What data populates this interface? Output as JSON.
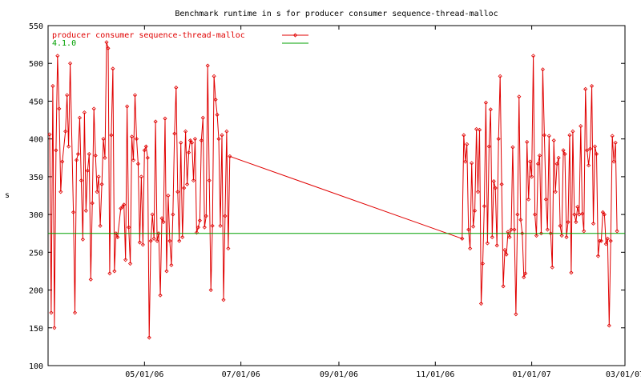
{
  "chart_data": {
    "type": "line",
    "title": "Benchmark runtime in s for producer consumer sequence-thread-malloc",
    "xlabel": "",
    "ylabel": "s",
    "x_axis_type": "date",
    "xlim": [
      "2006-03-01",
      "2007-03-01"
    ],
    "ylim": [
      100,
      550
    ],
    "y_ticks": [
      100,
      150,
      200,
      250,
      300,
      350,
      400,
      450,
      500,
      550
    ],
    "x_ticks": [
      {
        "date": "2006-05-01",
        "label": "05/01/06"
      },
      {
        "date": "2006-07-01",
        "label": "07/01/06"
      },
      {
        "date": "2006-09-01",
        "label": "09/01/06"
      },
      {
        "date": "2006-11-01",
        "label": "11/01/06"
      },
      {
        "date": "2007-01-01",
        "label": "01/01/07"
      },
      {
        "date": "2007-03-01",
        "label": "03/01/07"
      }
    ],
    "grid": false,
    "legend_position": "top-left",
    "series": [
      {
        "name": "producer consumer sequence-thread-malloc",
        "color": "#e00000",
        "marker": "diamond",
        "points": [
          [
            "2006-03-02",
            406
          ],
          [
            "2006-03-03",
            170
          ],
          [
            "2006-03-04",
            470
          ],
          [
            "2006-03-05",
            150
          ],
          [
            "2006-03-06",
            385
          ],
          [
            "2006-03-07",
            510
          ],
          [
            "2006-03-08",
            440
          ],
          [
            "2006-03-09",
            330
          ],
          [
            "2006-03-10",
            370
          ],
          [
            "2006-03-12",
            410
          ],
          [
            "2006-03-13",
            458
          ],
          [
            "2006-03-14",
            390
          ],
          [
            "2006-03-15",
            500
          ],
          [
            "2006-03-17",
            303
          ],
          [
            "2006-03-18",
            170
          ],
          [
            "2006-03-19",
            372
          ],
          [
            "2006-03-20",
            380
          ],
          [
            "2006-03-21",
            428
          ],
          [
            "2006-03-22",
            345
          ],
          [
            "2006-03-23",
            267
          ],
          [
            "2006-03-24",
            435
          ],
          [
            "2006-03-25",
            305
          ],
          [
            "2006-03-26",
            358
          ],
          [
            "2006-03-27",
            380
          ],
          [
            "2006-03-28",
            214
          ],
          [
            "2006-03-29",
            315
          ],
          [
            "2006-03-30",
            440
          ],
          [
            "2006-03-31",
            378
          ],
          [
            "2006-04-01",
            330
          ],
          [
            "2006-04-02",
            350
          ],
          [
            "2006-04-03",
            285
          ],
          [
            "2006-04-04",
            340
          ],
          [
            "2006-04-05",
            400
          ],
          [
            "2006-04-06",
            375
          ],
          [
            "2006-04-07",
            528
          ],
          [
            "2006-04-08",
            520
          ],
          [
            "2006-04-09",
            222
          ],
          [
            "2006-04-10",
            405
          ],
          [
            "2006-04-11",
            493
          ],
          [
            "2006-04-12",
            225
          ],
          [
            "2006-04-13",
            275
          ],
          [
            "2006-04-14",
            270
          ],
          [
            "2006-04-16",
            308
          ],
          [
            "2006-04-17",
            310
          ],
          [
            "2006-04-18",
            313
          ],
          [
            "2006-04-19",
            240
          ],
          [
            "2006-04-20",
            443
          ],
          [
            "2006-04-21",
            283
          ],
          [
            "2006-04-22",
            235
          ],
          [
            "2006-04-23",
            403
          ],
          [
            "2006-04-24",
            372
          ],
          [
            "2006-04-25",
            458
          ],
          [
            "2006-04-26",
            400
          ],
          [
            "2006-04-27",
            367
          ],
          [
            "2006-04-28",
            263
          ],
          [
            "2006-04-29",
            350
          ],
          [
            "2006-04-30",
            260
          ],
          [
            "2006-05-01",
            385
          ],
          [
            "2006-05-02",
            390
          ],
          [
            "2006-05-03",
            375
          ],
          [
            "2006-05-04",
            137
          ],
          [
            "2006-05-05",
            265
          ],
          [
            "2006-05-06",
            300
          ],
          [
            "2006-05-07",
            268
          ],
          [
            "2006-05-08",
            423
          ],
          [
            "2006-05-09",
            265
          ],
          [
            "2006-05-10",
            275
          ],
          [
            "2006-05-11",
            193
          ],
          [
            "2006-05-12",
            295
          ],
          [
            "2006-05-13",
            290
          ],
          [
            "2006-05-14",
            427
          ],
          [
            "2006-05-15",
            225
          ],
          [
            "2006-05-16",
            325
          ],
          [
            "2006-05-17",
            265
          ],
          [
            "2006-05-18",
            233
          ],
          [
            "2006-05-19",
            300
          ],
          [
            "2006-05-20",
            407
          ],
          [
            "2006-05-21",
            468
          ],
          [
            "2006-05-22",
            330
          ],
          [
            "2006-05-23",
            265
          ],
          [
            "2006-05-24",
            395
          ],
          [
            "2006-05-25",
            270
          ],
          [
            "2006-05-26",
            335
          ],
          [
            "2006-05-27",
            410
          ],
          [
            "2006-05-28",
            340
          ],
          [
            "2006-05-29",
            382
          ],
          [
            "2006-05-30",
            398
          ],
          [
            "2006-05-31",
            395
          ],
          [
            "2006-06-01",
            345
          ],
          [
            "2006-06-02",
            400
          ],
          [
            "2006-06-03",
            276
          ],
          [
            "2006-06-04",
            283
          ],
          [
            "2006-06-05",
            292
          ],
          [
            "2006-06-06",
            398
          ],
          [
            "2006-06-07",
            428
          ],
          [
            "2006-06-08",
            283
          ],
          [
            "2006-06-09",
            298
          ],
          [
            "2006-06-10",
            497
          ],
          [
            "2006-06-11",
            345
          ],
          [
            "2006-06-12",
            200
          ],
          [
            "2006-06-13",
            285
          ],
          [
            "2006-06-14",
            483
          ],
          [
            "2006-06-15",
            452
          ],
          [
            "2006-06-16",
            432
          ],
          [
            "2006-06-17",
            400
          ],
          [
            "2006-06-18",
            285
          ],
          [
            "2006-06-19",
            405
          ],
          [
            "2006-06-20",
            187
          ],
          [
            "2006-06-21",
            298
          ],
          [
            "2006-06-22",
            410
          ],
          [
            "2006-06-23",
            255
          ],
          [
            "2006-06-24",
            377
          ],
          [
            "2006-11-18",
            268
          ],
          [
            "2006-11-19",
            405
          ],
          [
            "2006-11-20",
            370
          ],
          [
            "2006-11-21",
            393
          ],
          [
            "2006-11-22",
            280
          ],
          [
            "2006-11-23",
            255
          ],
          [
            "2006-11-24",
            368
          ],
          [
            "2006-11-25",
            284
          ],
          [
            "2006-11-26",
            305
          ],
          [
            "2006-11-27",
            413
          ],
          [
            "2006-11-28",
            330
          ],
          [
            "2006-11-29",
            412
          ],
          [
            "2006-11-30",
            182
          ],
          [
            "2006-12-01",
            235
          ],
          [
            "2006-12-02",
            311
          ],
          [
            "2006-12-03",
            448
          ],
          [
            "2006-12-04",
            262
          ],
          [
            "2006-12-05",
            390
          ],
          [
            "2006-12-06",
            439
          ],
          [
            "2006-12-07",
            270
          ],
          [
            "2006-12-08",
            344
          ],
          [
            "2006-12-09",
            335
          ],
          [
            "2006-12-10",
            259
          ],
          [
            "2006-12-11",
            400
          ],
          [
            "2006-12-12",
            483
          ],
          [
            "2006-12-13",
            340
          ],
          [
            "2006-12-14",
            205
          ],
          [
            "2006-12-15",
            253
          ],
          [
            "2006-12-16",
            247
          ],
          [
            "2006-12-17",
            277
          ],
          [
            "2006-12-18",
            270
          ],
          [
            "2006-12-19",
            280
          ],
          [
            "2006-12-20",
            389
          ],
          [
            "2006-12-21",
            280
          ],
          [
            "2006-12-22",
            168
          ],
          [
            "2006-12-23",
            300
          ],
          [
            "2006-12-24",
            456
          ],
          [
            "2006-12-25",
            293
          ],
          [
            "2006-12-26",
            275
          ],
          [
            "2006-12-27",
            217
          ],
          [
            "2006-12-28",
            222
          ],
          [
            "2006-12-29",
            396
          ],
          [
            "2006-12-30",
            320
          ],
          [
            "2006-12-31",
            370
          ],
          [
            "2007-01-01",
            350
          ],
          [
            "2007-01-02",
            510
          ],
          [
            "2007-01-03",
            300
          ],
          [
            "2007-01-04",
            272
          ],
          [
            "2007-01-05",
            367
          ],
          [
            "2007-01-06",
            378
          ],
          [
            "2007-01-07",
            275
          ],
          [
            "2007-01-08",
            492
          ],
          [
            "2007-01-09",
            405
          ],
          [
            "2007-01-10",
            320
          ],
          [
            "2007-01-11",
            280
          ],
          [
            "2007-01-12",
            404
          ],
          [
            "2007-01-13",
            275
          ],
          [
            "2007-01-14",
            230
          ],
          [
            "2007-01-15",
            398
          ],
          [
            "2007-01-16",
            330
          ],
          [
            "2007-01-17",
            367
          ],
          [
            "2007-01-18",
            375
          ],
          [
            "2007-01-19",
            285
          ],
          [
            "2007-01-20",
            272
          ],
          [
            "2007-01-21",
            385
          ],
          [
            "2007-01-22",
            380
          ],
          [
            "2007-01-23",
            270
          ],
          [
            "2007-01-24",
            290
          ],
          [
            "2007-01-25",
            405
          ],
          [
            "2007-01-26",
            223
          ],
          [
            "2007-01-27",
            410
          ],
          [
            "2007-01-28",
            300
          ],
          [
            "2007-01-29",
            290
          ],
          [
            "2007-01-30",
            310
          ],
          [
            "2007-01-31",
            300
          ],
          [
            "2007-02-01",
            417
          ],
          [
            "2007-02-02",
            301
          ],
          [
            "2007-02-03",
            278
          ],
          [
            "2007-02-04",
            466
          ],
          [
            "2007-02-05",
            385
          ],
          [
            "2007-02-06",
            365
          ],
          [
            "2007-02-07",
            387
          ],
          [
            "2007-02-08",
            470
          ],
          [
            "2007-02-09",
            288
          ],
          [
            "2007-02-10",
            390
          ],
          [
            "2007-02-11",
            380
          ],
          [
            "2007-02-12",
            245
          ],
          [
            "2007-02-13",
            265
          ],
          [
            "2007-02-14",
            265
          ],
          [
            "2007-02-15",
            303
          ],
          [
            "2007-02-16",
            300
          ],
          [
            "2007-02-17",
            261
          ],
          [
            "2007-02-18",
            268
          ],
          [
            "2007-02-19",
            153
          ],
          [
            "2007-02-20",
            265
          ],
          [
            "2007-02-21",
            404
          ],
          [
            "2007-02-22",
            370
          ],
          [
            "2007-02-23",
            395
          ],
          [
            "2007-02-24",
            278
          ]
        ]
      },
      {
        "name": "4.1.0",
        "color": "#00a000",
        "marker": "none",
        "points": [
          [
            "2006-03-01",
            275
          ],
          [
            "2007-03-01",
            275
          ]
        ]
      }
    ]
  }
}
